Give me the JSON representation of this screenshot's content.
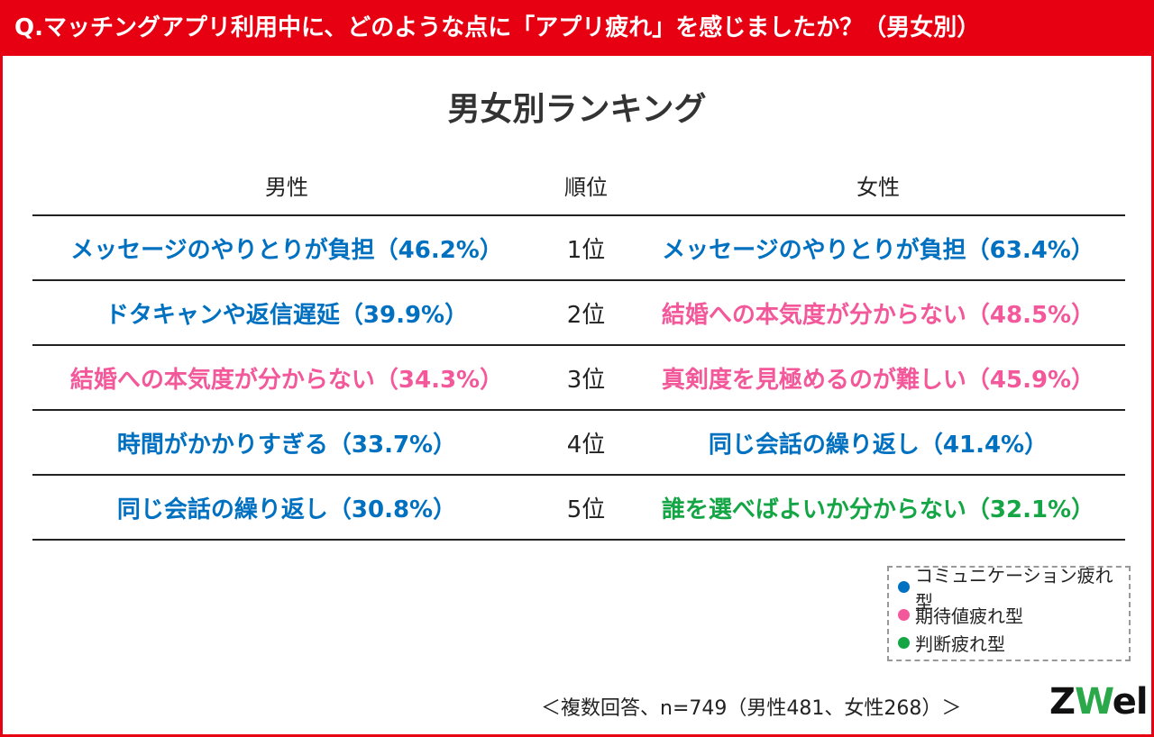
{
  "header": {
    "question": "Q.マッチングアプリ利用中に、どのような点に「アプリ疲れ」を感じましたか？（男女別）"
  },
  "subtitle": "男女別ランキング",
  "columns": {
    "male": "男性",
    "rank": "順位",
    "female": "女性"
  },
  "colors": {
    "communication": "#0070c0",
    "expectation": "#f2589a",
    "judgment": "#14a545",
    "accent": "#e60012"
  },
  "rows": [
    {
      "rank": "1位",
      "male": "メッセージのやりとりが負担（46.2%）",
      "male_type": "communication",
      "female": "メッセージのやりとりが負担（63.4%）",
      "female_type": "communication"
    },
    {
      "rank": "2位",
      "male": "ドタキャンや返信遅延（39.9%）",
      "male_type": "communication",
      "female": "結婚への本気度が分からない（48.5%）",
      "female_type": "expectation"
    },
    {
      "rank": "3位",
      "male": "結婚への本気度が分からない（34.3%）",
      "male_type": "expectation",
      "female": "真剣度を見極めるのが難しい（45.9%）",
      "female_type": "expectation"
    },
    {
      "rank": "4位",
      "male": "時間がかかりすぎる（33.7%）",
      "male_type": "communication",
      "female": "同じ会話の繰り返し（41.4%）",
      "female_type": "communication"
    },
    {
      "rank": "5位",
      "male": "同じ会話の繰り返し（30.8%）",
      "male_type": "communication",
      "female": "誰を選べばよいか分からない（32.1%）",
      "female_type": "judgment"
    }
  ],
  "legend": [
    {
      "label": "コミュニケーション疲れ型",
      "type": "communication"
    },
    {
      "label": "期待値疲れ型",
      "type": "expectation"
    },
    {
      "label": "判断疲れ型",
      "type": "judgment"
    }
  ],
  "footnote": "＜複数回答、n=749（男性481、女性268）＞",
  "logo": {
    "prefix": "Z",
    "mark": "W",
    "suffix": "el"
  }
}
